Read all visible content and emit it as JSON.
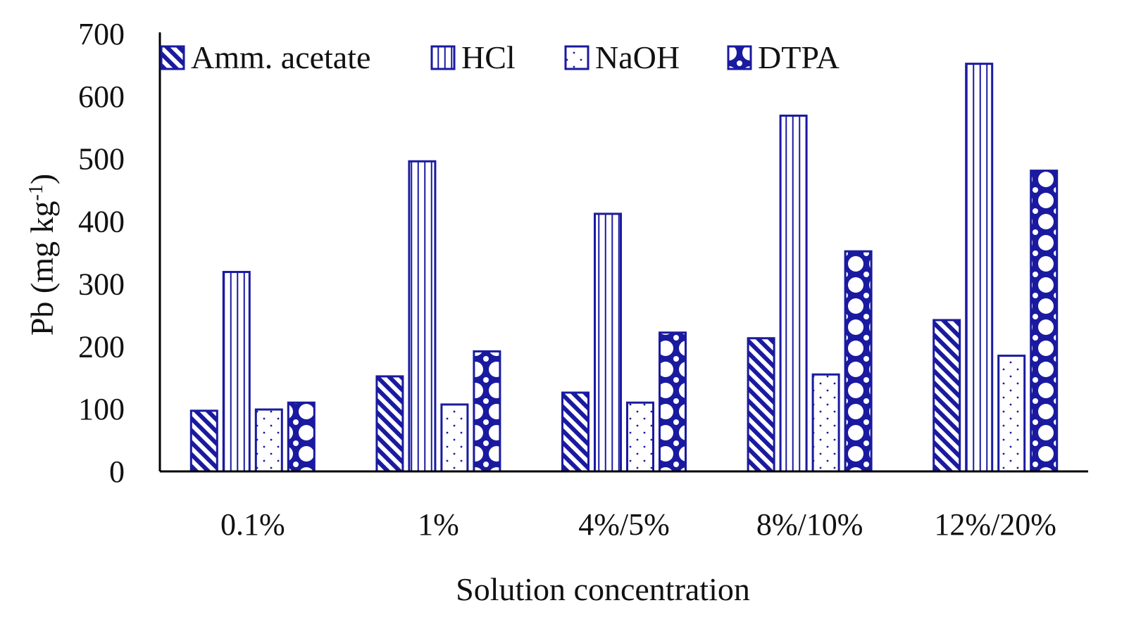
{
  "chart_data": {
    "type": "bar",
    "title": "",
    "xlabel": "Solution concentration",
    "ylabel_main": "Pb (mg kg",
    "ylabel_sup": "-1",
    "ylabel_close": ")",
    "ylim": [
      0,
      700
    ],
    "yticks": [
      0,
      100,
      200,
      300,
      400,
      500,
      600,
      700
    ],
    "ytick_labels": [
      "0",
      "100",
      "200",
      "300",
      "400",
      "500",
      "600",
      "700"
    ],
    "grid": false,
    "legend_position": "top",
    "categories": [
      "0.1%",
      "1%",
      "4%/5%",
      "8%/10%",
      "12%/20%"
    ],
    "series": [
      {
        "name": "Amm. acetate",
        "pattern": "diagonal",
        "values": [
          97,
          152,
          126,
          213,
          242
        ]
      },
      {
        "name": "HCl",
        "pattern": "vertical",
        "values": [
          319,
          496,
          412,
          569,
          652
        ]
      },
      {
        "name": "NaOH",
        "pattern": "dots",
        "values": [
          99,
          107,
          110,
          155,
          185
        ]
      },
      {
        "name": "DTPA",
        "pattern": "circles",
        "values": [
          110,
          192,
          222,
          352,
          481
        ]
      }
    ],
    "color": "#1a1aa0"
  }
}
